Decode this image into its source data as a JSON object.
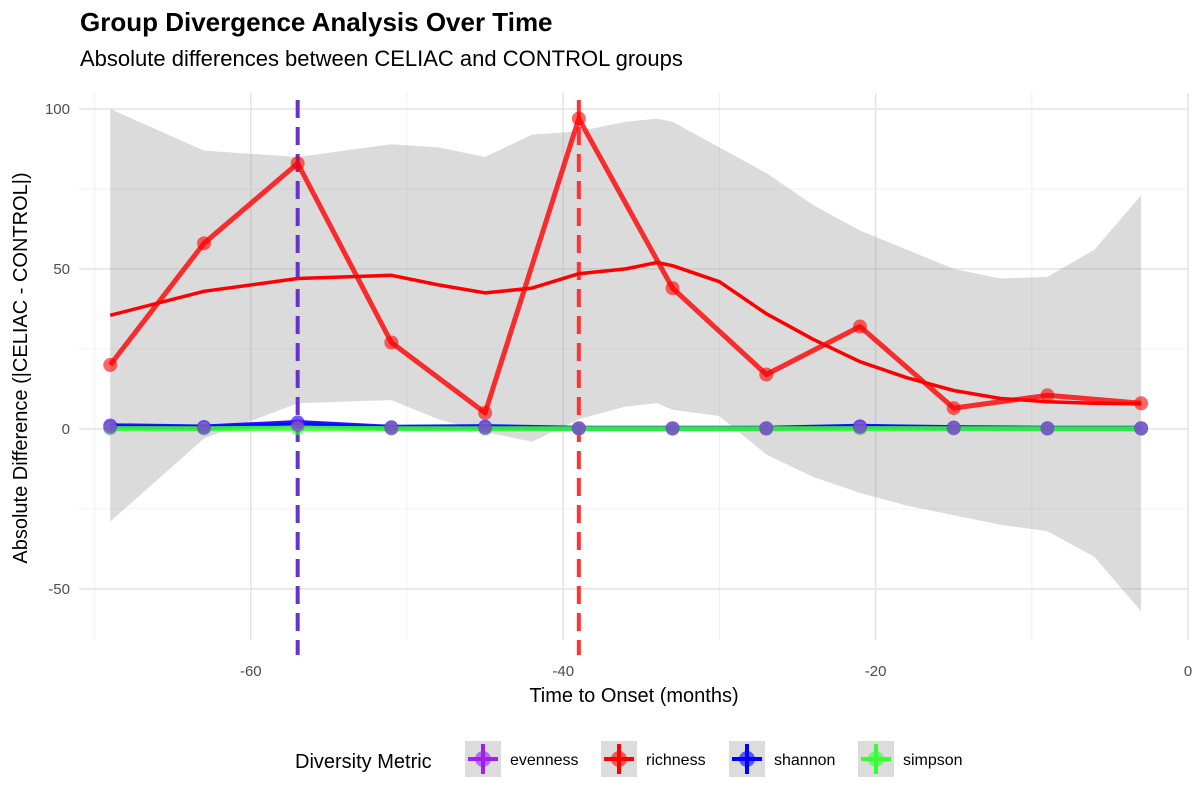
{
  "chart_data": {
    "type": "line",
    "title": "Group Divergence Analysis Over Time",
    "subtitle": "Absolute differences between CELIAC and CONTROL groups",
    "xlabel": "Time to Onset (months)",
    "ylabel": "Absolute Difference (|CELIAC - CONTROL|)",
    "xlim": [
      -71,
      0
    ],
    "ylim": [
      -66,
      105
    ],
    "x_ticks": [
      -60,
      -40,
      -20,
      0
    ],
    "y_ticks": [
      100,
      50,
      0,
      -50
    ],
    "x_tick_labels": [
      "-60",
      "-40",
      "-20",
      "0"
    ],
    "y_tick_labels": [
      "100",
      "50",
      "0",
      "-50"
    ],
    "grid": true,
    "legend_title": "Diversity Metric",
    "legend_position": "bottom",
    "x": [
      -69,
      -63,
      -57,
      -51,
      -45,
      -39,
      -33,
      -27,
      -21,
      -15,
      -9,
      -3
    ],
    "series": [
      {
        "name": "evenness",
        "color": "#A020F0",
        "values": [
          0.5,
          0.3,
          1.2,
          0.2,
          0.3,
          0.1,
          0.1,
          0.1,
          0.5,
          0.2,
          0.1,
          0.1
        ]
      },
      {
        "name": "richness",
        "color": "#FF0000",
        "values": [
          20,
          58,
          83,
          27,
          5,
          97,
          44,
          17,
          32,
          6.5,
          10.5,
          8
        ]
      },
      {
        "name": "shannon",
        "color": "#0000FF",
        "values": [
          1.0,
          0.6,
          2.0,
          0.5,
          0.7,
          0.2,
          0.2,
          0.2,
          0.8,
          0.4,
          0.2,
          0.2
        ]
      },
      {
        "name": "simpson",
        "color": "#33FF33",
        "values": [
          0.1,
          0.05,
          0.2,
          0.05,
          0.05,
          0.02,
          0.02,
          0.02,
          0.1,
          0.05,
          0.02,
          0.02
        ]
      }
    ],
    "smooth": {
      "name": "richness",
      "color": "#FF0000",
      "x": [
        -69,
        -63,
        -57,
        -51,
        -48,
        -45,
        -42,
        -39,
        -36,
        -34,
        -33,
        -30,
        -27,
        -24,
        -21,
        -18,
        -15,
        -12,
        -9,
        -6,
        -3
      ],
      "y": [
        35.5,
        43,
        47,
        48,
        45,
        42.5,
        44,
        48.5,
        50,
        52,
        51,
        46,
        36,
        28,
        21,
        16,
        12,
        9.5,
        8.5,
        8,
        7.8
      ],
      "ci_upper": [
        100,
        87,
        85,
        89,
        88,
        85,
        92,
        93,
        96,
        97,
        96,
        88,
        80,
        70,
        62,
        56,
        50,
        47,
        47.5,
        56,
        73
      ],
      "ci_lower": [
        -29,
        -3,
        8,
        9,
        3,
        -1,
        -4,
        3,
        7,
        8,
        6,
        4,
        -8,
        -15,
        -20,
        -24,
        -27,
        -30,
        -32,
        -40,
        -57
      ]
    },
    "vlines": [
      {
        "x": -57,
        "color": "#6633CC"
      },
      {
        "x": -39,
        "color": "#FF3333"
      }
    ]
  }
}
